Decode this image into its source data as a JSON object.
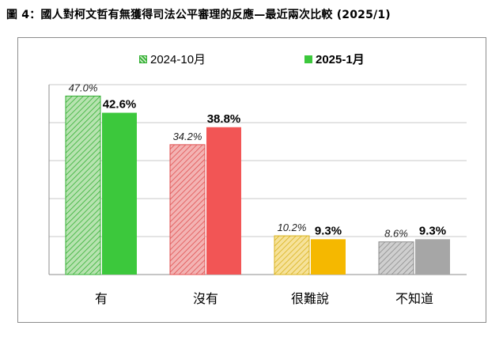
{
  "title": "圖 4：國人對柯文哲有無獲得司法公平審理的反應—最近兩次比較 (2025/1)",
  "legend": {
    "old_label": "2024-10月",
    "new_label": "2025-1月"
  },
  "colors": {
    "group_light": [
      "#b7e3b0",
      "#f3b3b3",
      "#f6e29a",
      "#cfcfcf"
    ],
    "group_dark": [
      "#3cc83c",
      "#f25555",
      "#f5b800",
      "#a6a6a6"
    ],
    "group_hatch": [
      "#35b035",
      "#e05050",
      "#d9b21c",
      "#8c8c8c"
    ],
    "gridline": "#c8c8c8",
    "axis": "#8c8c8c"
  },
  "chart_data": {
    "type": "bar",
    "title": "圖 4：國人對柯文哲有無獲得司法公平審理的反應—最近兩次比較 (2025/1)",
    "categories": [
      "有",
      "沒有",
      "很難說",
      "不知道"
    ],
    "series": [
      {
        "name": "2024-10月",
        "values": [
          47.0,
          34.2,
          10.2,
          8.6
        ],
        "labels": [
          "47.0%",
          "34.2%",
          "10.2%",
          "8.6%"
        ],
        "pattern": "hatched"
      },
      {
        "name": "2025-1月",
        "values": [
          42.6,
          38.8,
          9.3,
          9.3
        ],
        "labels": [
          "42.6%",
          "38.8%",
          "9.3%",
          "9.3%"
        ],
        "pattern": "solid"
      }
    ],
    "ylim": [
      0,
      50
    ],
    "grid": true,
    "legend_position": "top-center"
  }
}
